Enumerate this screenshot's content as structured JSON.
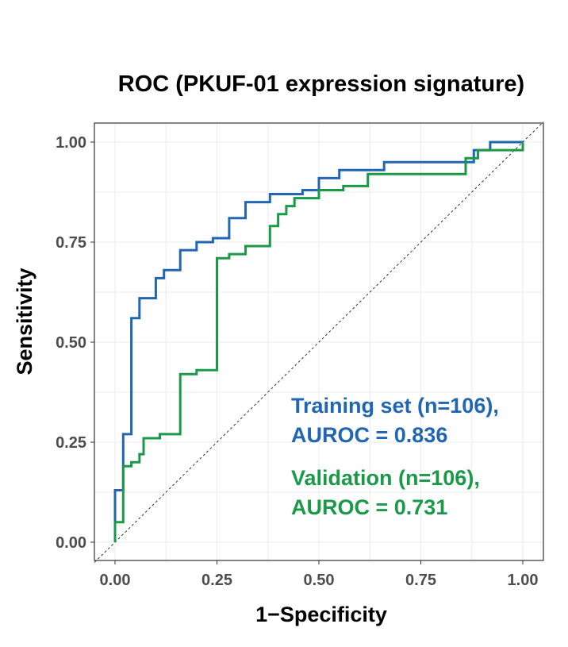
{
  "chart_data": {
    "type": "line",
    "title": "ROC (PKUF-01 expression signature)",
    "xlabel": "1−Specificity",
    "ylabel": "Sensitivity",
    "xlim": [
      0,
      1
    ],
    "ylim": [
      0,
      1
    ],
    "x_ticks": [
      "0.00",
      "0.25",
      "0.50",
      "0.75",
      "1.00"
    ],
    "y_ticks": [
      "0.00",
      "0.25",
      "0.50",
      "0.75",
      "1.00"
    ],
    "grid": true,
    "diagonal_reference": true,
    "series": [
      {
        "color": "#2166b4",
        "x": [
          0,
          0,
          0.02,
          0.02,
          0.04,
          0.04,
          0.06,
          0.06,
          0.1,
          0.1,
          0.12,
          0.12,
          0.16,
          0.16,
          0.2,
          0.2,
          0.24,
          0.24,
          0.28,
          0.28,
          0.32,
          0.32,
          0.38,
          0.38,
          0.46,
          0.46,
          0.5,
          0.5,
          0.55,
          0.55,
          0.66,
          0.66,
          0.88,
          0.88,
          0.92,
          0.92,
          1.0,
          1.0
        ],
        "y": [
          0,
          0.13,
          0.13,
          0.27,
          0.27,
          0.56,
          0.56,
          0.61,
          0.61,
          0.66,
          0.66,
          0.68,
          0.68,
          0.73,
          0.73,
          0.75,
          0.75,
          0.76,
          0.76,
          0.81,
          0.81,
          0.85,
          0.85,
          0.87,
          0.87,
          0.88,
          0.88,
          0.91,
          0.91,
          0.93,
          0.93,
          0.95,
          0.95,
          0.98,
          0.98,
          1.0,
          1.0,
          0.98
        ]
      },
      {
        "color": "#1a9a48",
        "x": [
          0,
          0,
          0.02,
          0.02,
          0.04,
          0.04,
          0.06,
          0.06,
          0.07,
          0.07,
          0.11,
          0.11,
          0.16,
          0.16,
          0.2,
          0.2,
          0.25,
          0.25,
          0.28,
          0.28,
          0.32,
          0.32,
          0.38,
          0.38,
          0.4,
          0.4,
          0.42,
          0.42,
          0.44,
          0.44,
          0.5,
          0.5,
          0.56,
          0.56,
          0.62,
          0.62,
          0.86,
          0.86,
          0.89,
          0.89,
          1.0,
          1.0
        ],
        "y": [
          0,
          0.05,
          0.05,
          0.19,
          0.19,
          0.2,
          0.2,
          0.22,
          0.22,
          0.26,
          0.26,
          0.27,
          0.27,
          0.42,
          0.42,
          0.43,
          0.43,
          0.71,
          0.71,
          0.72,
          0.72,
          0.74,
          0.74,
          0.79,
          0.79,
          0.82,
          0.82,
          0.84,
          0.84,
          0.86,
          0.86,
          0.88,
          0.88,
          0.89,
          0.89,
          0.92,
          0.92,
          0.96,
          0.96,
          0.98,
          0.98,
          1.0
        ]
      }
    ]
  },
  "annotations": {
    "training_line1": "Training set (n=106),",
    "training_line2": "AUROC = 0.836",
    "validation_line1": "Validation (n=106),",
    "validation_line2": "AUROC = 0.731",
    "training_color": "#2166b4",
    "validation_color": "#1a9a48"
  },
  "colors": {
    "panel_border": "#333333",
    "grid": "#ebebeb",
    "diagonal": "#333333"
  }
}
